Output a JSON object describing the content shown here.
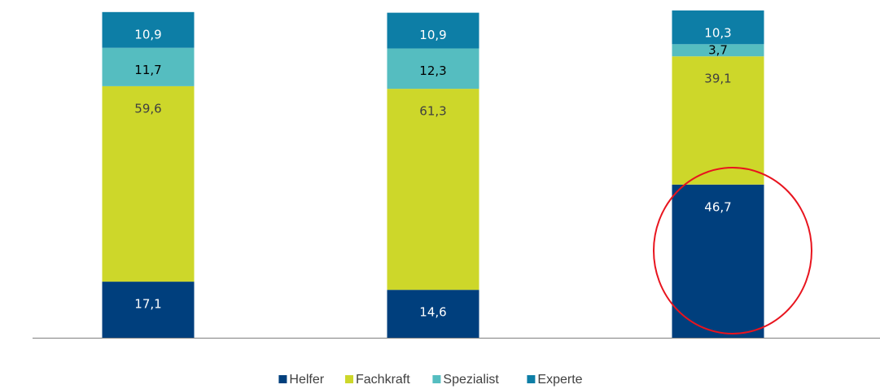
{
  "chart_data": {
    "type": "stacked-bar",
    "categories": [
      null,
      null,
      null
    ],
    "ylim": [
      0,
      100
    ],
    "series": [
      {
        "name": "Helfer",
        "color": "#003f7d",
        "label_color": "#ffffff",
        "values": [
          17.1,
          14.6,
          46.7
        ],
        "value_labels": [
          "17,1",
          "14,6",
          "46,7"
        ]
      },
      {
        "name": "Fachkraft",
        "color": "#cdd72a",
        "label_color": "#404040",
        "values": [
          59.6,
          61.3,
          39.1
        ],
        "value_labels": [
          "59,6",
          "61,3",
          "39,1"
        ]
      },
      {
        "name": "Spezialist",
        "color": "#55bdc0",
        "label_color": "#000000",
        "values": [
          11.7,
          12.3,
          3.7
        ],
        "value_labels": [
          "11,7",
          "12,3",
          "3,7"
        ]
      },
      {
        "name": "Experte",
        "color": "#0d7ea6",
        "label_color": "#ffffff",
        "values": [
          10.9,
          10.9,
          10.3
        ],
        "value_labels": [
          "10,9",
          "10,9",
          "10,3"
        ]
      }
    ],
    "legend": "bottom"
  }
}
